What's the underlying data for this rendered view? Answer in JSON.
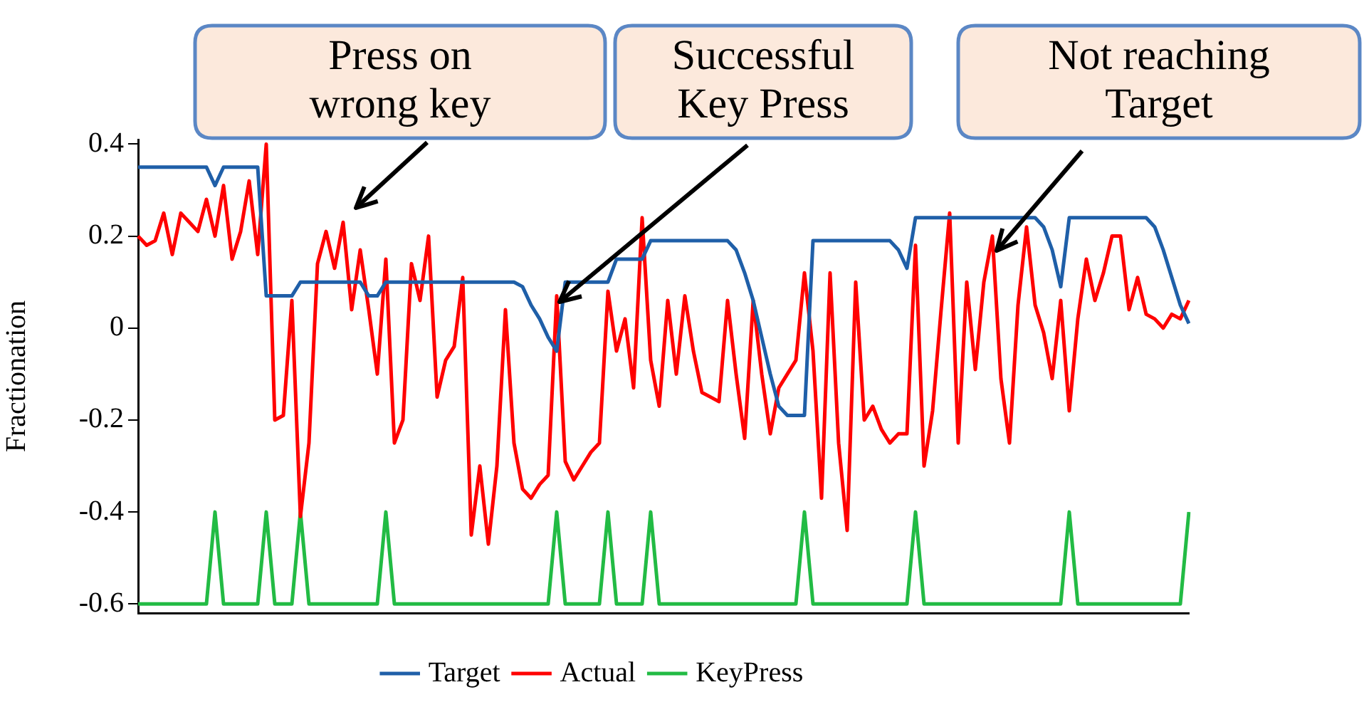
{
  "chart_data": {
    "type": "line",
    "ylabel": "Fractionation",
    "categories": [
      null,
      null,
      null,
      null,
      null,
      null,
      null,
      null,
      null,
      null,
      null,
      null,
      null,
      null,
      null,
      null,
      null,
      null,
      null,
      null,
      null,
      null,
      null,
      null,
      null,
      null,
      null,
      null,
      null,
      null,
      null,
      null,
      null,
      null,
      null,
      null,
      null,
      null,
      null,
      null,
      null,
      null,
      null,
      null,
      null,
      null,
      null,
      null,
      null,
      null,
      null,
      null,
      null,
      null,
      null,
      null,
      null,
      null,
      null,
      null,
      null,
      null,
      null,
      null,
      null,
      null,
      null,
      null,
      null,
      null,
      null,
      null,
      null,
      null,
      null,
      null,
      null,
      null,
      null,
      null,
      null,
      null,
      null,
      null,
      null,
      null,
      null,
      null,
      null,
      null,
      null,
      null,
      null,
      null,
      null,
      null,
      null,
      null,
      null,
      null,
      null,
      null,
      null,
      null,
      null,
      null,
      null,
      null,
      null,
      null,
      null,
      null,
      null,
      null,
      null,
      null,
      null,
      null,
      null,
      null,
      null,
      null,
      null,
      null
    ],
    "series": [
      {
        "name": "Target",
        "color": "#1f5fa8",
        "values": [
          0.35,
          0.35,
          0.35,
          0.35,
          0.35,
          0.35,
          0.35,
          0.35,
          0.35,
          0.31,
          0.35,
          0.35,
          0.35,
          0.35,
          0.35,
          0.07,
          0.07,
          0.07,
          0.07,
          0.1,
          0.1,
          0.1,
          0.1,
          0.1,
          0.1,
          0.1,
          0.1,
          0.07,
          0.07,
          0.1,
          0.1,
          0.1,
          0.1,
          0.1,
          0.1,
          0.1,
          0.1,
          0.1,
          0.1,
          0.1,
          0.1,
          0.1,
          0.1,
          0.1,
          0.1,
          0.09,
          0.05,
          0.02,
          -0.02,
          -0.05,
          0.1,
          0.1,
          0.1,
          0.1,
          0.1,
          0.1,
          0.15,
          0.15,
          0.15,
          0.15,
          0.19,
          0.19,
          0.19,
          0.19,
          0.19,
          0.19,
          0.19,
          0.19,
          0.19,
          0.19,
          0.17,
          0.12,
          0.06,
          -0.02,
          -0.1,
          -0.17,
          -0.19,
          -0.19,
          -0.19,
          0.19,
          0.19,
          0.19,
          0.19,
          0.19,
          0.19,
          0.19,
          0.19,
          0.19,
          0.19,
          0.17,
          0.13,
          0.24,
          0.24,
          0.24,
          0.24,
          0.24,
          0.24,
          0.24,
          0.24,
          0.24,
          0.24,
          0.24,
          0.24,
          0.24,
          0.24,
          0.24,
          0.22,
          0.17,
          0.09,
          0.24,
          0.24,
          0.24,
          0.24,
          0.24,
          0.24,
          0.24,
          0.24,
          0.24,
          0.24,
          0.22,
          0.17,
          0.11,
          0.05,
          0.01
        ]
      },
      {
        "name": "Actual",
        "color": "#ff0000",
        "values": [
          0.2,
          0.18,
          0.19,
          0.25,
          0.16,
          0.25,
          0.23,
          0.21,
          0.28,
          0.2,
          0.31,
          0.15,
          0.21,
          0.32,
          0.16,
          0.4,
          -0.2,
          -0.19,
          0.06,
          -0.41,
          -0.25,
          0.14,
          0.21,
          0.13,
          0.23,
          0.04,
          0.17,
          0.04,
          -0.1,
          0.15,
          -0.25,
          -0.2,
          0.14,
          0.06,
          0.2,
          -0.15,
          -0.07,
          -0.04,
          0.11,
          -0.45,
          -0.3,
          -0.47,
          -0.3,
          0.04,
          -0.25,
          -0.35,
          -0.37,
          -0.34,
          -0.32,
          0.07,
          -0.29,
          -0.33,
          -0.3,
          -0.27,
          -0.25,
          0.08,
          -0.05,
          0.02,
          -0.13,
          0.24,
          -0.07,
          -0.17,
          0.06,
          -0.1,
          0.07,
          -0.05,
          -0.14,
          -0.15,
          -0.16,
          0.06,
          -0.1,
          -0.24,
          0.06,
          -0.1,
          -0.23,
          -0.13,
          -0.1,
          -0.07,
          0.12,
          -0.05,
          -0.37,
          0.12,
          -0.25,
          -0.44,
          0.1,
          -0.2,
          -0.17,
          -0.22,
          -0.25,
          -0.23,
          -0.23,
          0.18,
          -0.3,
          -0.18,
          0.04,
          0.25,
          -0.25,
          0.1,
          -0.09,
          0.1,
          0.2,
          -0.11,
          -0.25,
          0.05,
          0.22,
          0.05,
          -0.01,
          -0.11,
          0.06,
          -0.18,
          0.02,
          0.15,
          0.06,
          0.12,
          0.2,
          0.2,
          0.04,
          0.11,
          0.03,
          0.02,
          0,
          0.03,
          0.02,
          0.06
        ]
      },
      {
        "name": "KeyPress",
        "color": "#22bb44",
        "values": [
          -0.6,
          -0.6,
          -0.6,
          -0.6,
          -0.6,
          -0.6,
          -0.6,
          -0.6,
          -0.6,
          -0.4,
          -0.6,
          -0.6,
          -0.6,
          -0.6,
          -0.6,
          -0.4,
          -0.6,
          -0.6,
          -0.6,
          -0.4,
          -0.6,
          -0.6,
          -0.6,
          -0.6,
          -0.6,
          -0.6,
          -0.6,
          -0.6,
          -0.6,
          -0.4,
          -0.6,
          -0.6,
          -0.6,
          -0.6,
          -0.6,
          -0.6,
          -0.6,
          -0.6,
          -0.6,
          -0.6,
          -0.6,
          -0.6,
          -0.6,
          -0.6,
          -0.6,
          -0.6,
          -0.6,
          -0.6,
          -0.6,
          -0.4,
          -0.6,
          -0.6,
          -0.6,
          -0.6,
          -0.6,
          -0.4,
          -0.6,
          -0.6,
          -0.6,
          -0.6,
          -0.4,
          -0.6,
          -0.6,
          -0.6,
          -0.6,
          -0.6,
          -0.6,
          -0.6,
          -0.6,
          -0.6,
          -0.6,
          -0.6,
          -0.6,
          -0.6,
          -0.6,
          -0.6,
          -0.6,
          -0.6,
          -0.4,
          -0.6,
          -0.6,
          -0.6,
          -0.6,
          -0.6,
          -0.6,
          -0.6,
          -0.6,
          -0.6,
          -0.6,
          -0.6,
          -0.6,
          -0.4,
          -0.6,
          -0.6,
          -0.6,
          -0.6,
          -0.6,
          -0.6,
          -0.6,
          -0.6,
          -0.6,
          -0.6,
          -0.6,
          -0.6,
          -0.6,
          -0.6,
          -0.6,
          -0.6,
          -0.6,
          -0.4,
          -0.6,
          -0.6,
          -0.6,
          -0.6,
          -0.6,
          -0.6,
          -0.6,
          -0.6,
          -0.6,
          -0.6,
          -0.6,
          -0.6,
          -0.6,
          -0.4
        ]
      }
    ],
    "ylim": [
      -0.62,
      0.41
    ],
    "yticks": [
      -0.6,
      -0.4,
      -0.2,
      0,
      0.2,
      0.4
    ],
    "grid": false,
    "legend": "bottom",
    "marker": "none",
    "line_style": "solid",
    "annotations": [
      "Press on wrong key",
      "Successful Key Press",
      "Not reaching Target"
    ]
  }
}
